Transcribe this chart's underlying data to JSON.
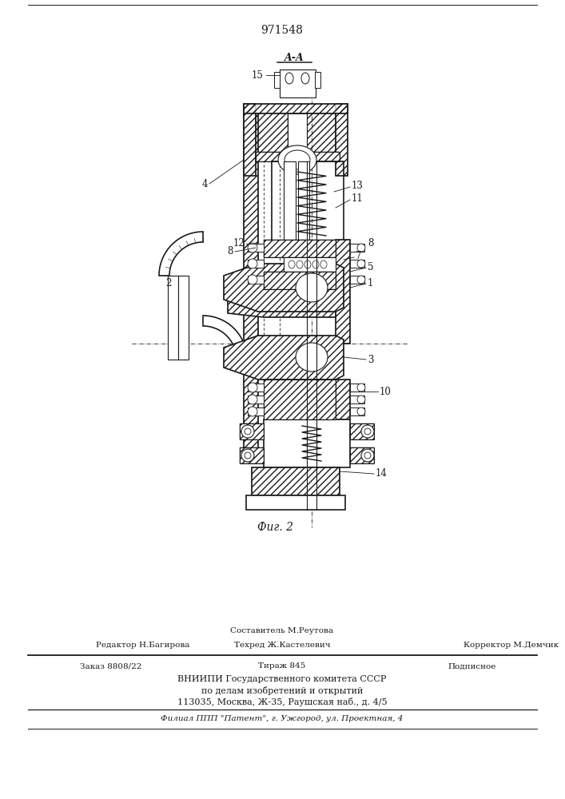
{
  "patent_number": "971548",
  "fig_label": "Фиг. 2",
  "section_label": "A-A",
  "bg_color": "#ffffff",
  "line_color": "#1a1a1a",
  "footer_lines": [
    "Составитель М.Реутова",
    "Редактор Н.Багирова",
    "Техред Ж.Кастелевич",
    "Корректор М.Демчик",
    "Заказ 8808/22",
    "Тираж 845",
    "Подписное",
    "ВНИИПИ Государственного комитета СССР",
    "по делам изобретений и открытий",
    "113035, Москва, Ж-35, Раушская наб., д. 4/5",
    "Филиал ППП \"Патент\", г. Ужгород, ул. Проектная, 4"
  ]
}
